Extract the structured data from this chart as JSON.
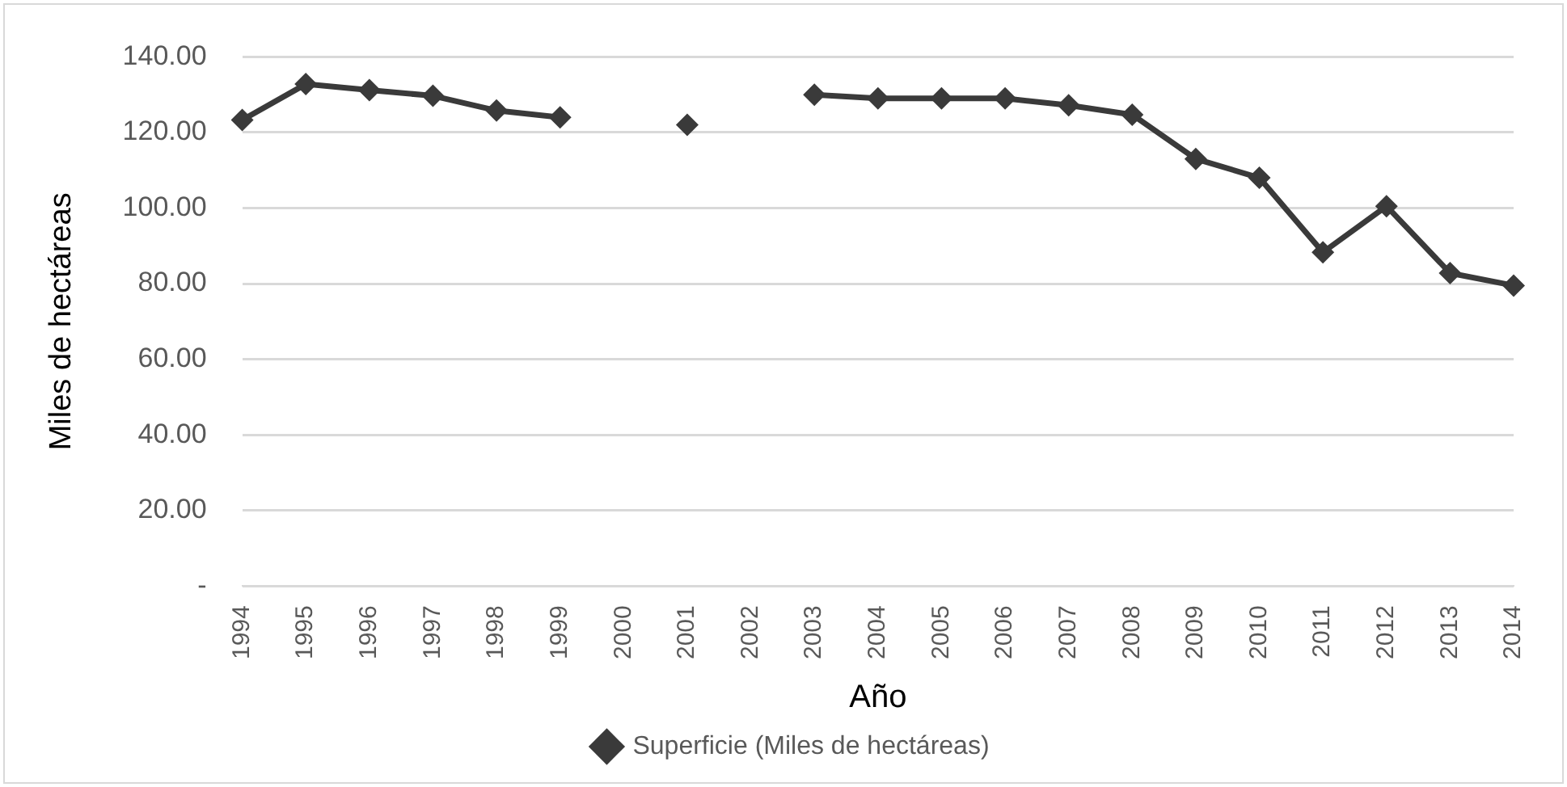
{
  "chart_data": {
    "type": "line",
    "xlabel": "Año",
    "ylabel": "Miles de hectáreas",
    "categories": [
      "1994",
      "1995",
      "1996",
      "1997",
      "1998",
      "1999",
      "2000",
      "2001",
      "2002",
      "2003",
      "2004",
      "2005",
      "2006",
      "2007",
      "2008",
      "2009",
      "2010",
      "2011",
      "2012",
      "2013",
      "2014"
    ],
    "series": [
      {
        "name": "Superficie (Miles de hectáreas)",
        "color": "#3a3a3a",
        "values": [
          123.3,
          132.8,
          131.2,
          129.7,
          125.8,
          124,
          null,
          122,
          null,
          130,
          129,
          129,
          129,
          127.2,
          124.7,
          113,
          108,
          88.3,
          100.5,
          82.8,
          79.5
        ]
      }
    ],
    "ylim": [
      0,
      140
    ],
    "yticks": [
      {
        "value": 0,
        "label": "-"
      },
      {
        "value": 20,
        "label": "20.00"
      },
      {
        "value": 40,
        "label": "40.00"
      },
      {
        "value": 60,
        "label": "60.00"
      },
      {
        "value": 80,
        "label": "80.00"
      },
      {
        "value": 100,
        "label": "100.00"
      },
      {
        "value": 120,
        "label": "120.00"
      },
      {
        "value": 140,
        "label": "140.00"
      }
    ],
    "grid": "y",
    "legend": "bottom",
    "marker": "diamond",
    "line_style": "solid"
  }
}
